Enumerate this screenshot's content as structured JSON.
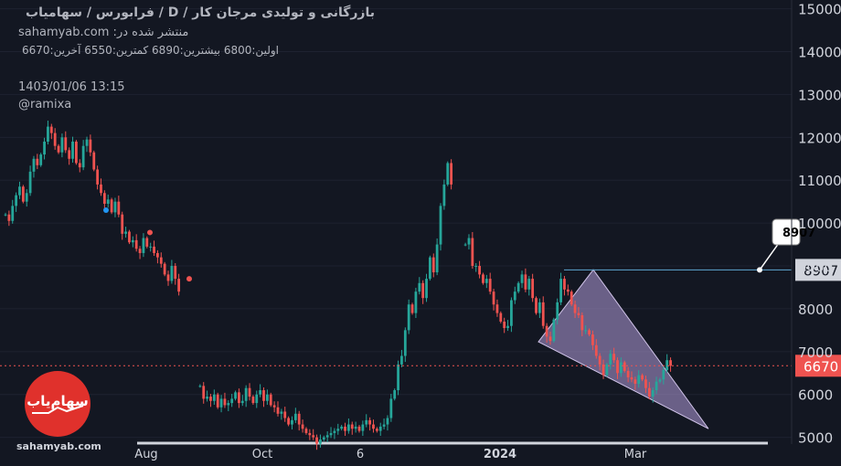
{
  "header": {
    "title": "بازرگانی و تولیدی مرجان کار /  D /  فرابورس / سهامیاب",
    "source": "sahamyab.com :منتشر شده در",
    "ohlc": "اولین:6800  بیشترین:6890  کمترین:6550  آخرین:6670",
    "timestamp": "1403/01/06 13:15",
    "user": "@ramixa"
  },
  "watermark": "sahamyab.com",
  "logo_text": "سهام‌یاب",
  "chart_data": {
    "type": "candlestick",
    "ylim": [
      4800,
      15200
    ],
    "y_ticks": [
      "5000",
      "6000",
      "7000",
      "8000",
      "9000",
      "10000",
      "11000",
      "12000",
      "13000",
      "14000",
      "15000"
    ],
    "x_ticks": [
      "Aug",
      "Oct",
      "6",
      "2024",
      "Mar"
    ],
    "last_price": 6670,
    "marked_level": 8907,
    "marked_level_label": "8907",
    "callout_label": "8907",
    "colors": {
      "up": "#26a69a",
      "down": "#ef5350",
      "bg": "#131722",
      "grid": "#1e2230",
      "axis_text": "#d1d4dc",
      "pattern_fill": "#b39ddb",
      "pattern_line": "#d1c4e9",
      "level_line": "#5fa8d3",
      "price_line": "#ef5350"
    },
    "closes": [
      10200,
      10050,
      10400,
      10650,
      10850,
      10500,
      10700,
      11200,
      11500,
      11350,
      11600,
      11900,
      12250,
      12100,
      11800,
      11650,
      12000,
      11700,
      11500,
      11900,
      11400,
      11300,
      11800,
      11950,
      11650,
      11250,
      10900,
      10700,
      10450,
      10550,
      10250,
      10500,
      10200,
      9750,
      9800,
      9550,
      9600,
      9400,
      9300,
      9650,
      9450,
      9450,
      9300,
      9200,
      9050,
      8800,
      8650,
      9000,
      8700,
      8400,
      null,
      null,
      null,
      null,
      null,
      6200,
      5900,
      5950,
      5850,
      6000,
      5700,
      5900,
      5750,
      5800,
      5900,
      6050,
      5800,
      5850,
      6150,
      5950,
      5800,
      6000,
      6100,
      5850,
      6000,
      5750,
      5700,
      5550,
      5600,
      5450,
      5300,
      5400,
      5550,
      5300,
      5200,
      5100,
      5050,
      5000,
      4850,
      4950,
      5000,
      5050,
      5100,
      5150,
      5200,
      5250,
      5150,
      5300,
      5200,
      5250,
      5150,
      5300,
      5400,
      5300,
      5200,
      5150,
      5250,
      5300,
      5450,
      5900,
      6100,
      6700,
      6900,
      7500,
      8100,
      7900,
      8400,
      8600,
      8250,
      8700,
      9200,
      8850,
      9500,
      10400,
      10900,
      11400,
      10900,
      null,
      null,
      null,
      9500,
      9650,
      9000,
      9000,
      8800,
      8600,
      8700,
      8400,
      8100,
      7900,
      7700,
      7550,
      7600,
      8200,
      8400,
      8600,
      8800,
      8450,
      8700,
      8250,
      7900,
      8150,
      7600,
      7350,
      7250,
      7750,
      8150,
      8700,
      8450,
      8400,
      8100,
      7900,
      7850,
      7500,
      7500,
      7400,
      7150,
      6900,
      6700,
      6450,
      6700,
      6950,
      6800,
      6500,
      6750,
      6550,
      6400,
      6350,
      6250,
      6450,
      6350,
      6150,
      5950,
      6100,
      6300,
      6350,
      6570,
      6800,
      6670
    ]
  },
  "chart_labels": {
    "x": [
      "Aug",
      "Oct",
      "6",
      "2024",
      "Mar"
    ]
  }
}
